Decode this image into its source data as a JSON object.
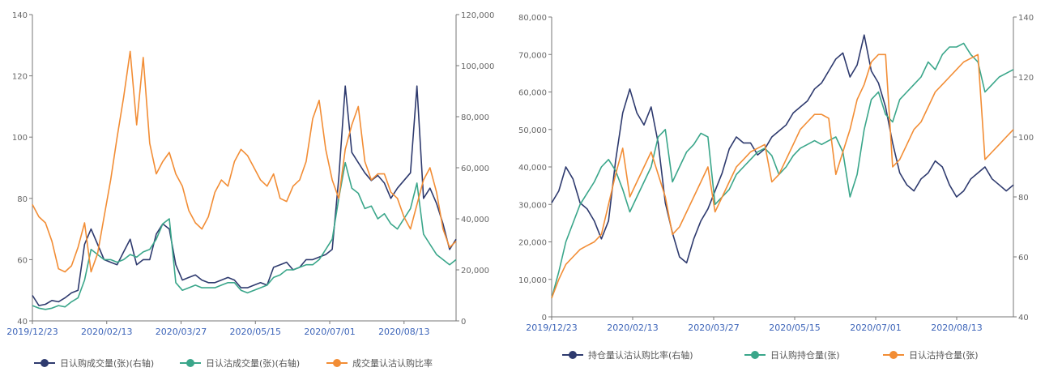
{
  "chart_data": [
    {
      "type": "line",
      "x_tick_labels": [
        "2019/12/23",
        "2020/02/13",
        "2020/03/27",
        "2020/05/15",
        "2020/07/01",
        "2020/08/13"
      ],
      "ylim_left": [
        40,
        140
      ],
      "yticks_left": [
        "40",
        "60",
        "80",
        "100",
        "120",
        "140"
      ],
      "ylim_right": [
        0,
        120000
      ],
      "yticks_right": [
        "0",
        "20,000",
        "40,000",
        "60,000",
        "80,000",
        "100,000",
        "120,000"
      ],
      "grid": false,
      "legend_position": "bottom",
      "series": [
        {
          "name": "日认购成交量(张)(右轴)",
          "axis": "right",
          "color": "#2e3a6e",
          "values": [
            10000,
            6000,
            6500,
            8000,
            7500,
            9000,
            11000,
            12000,
            30000,
            36000,
            30000,
            24000,
            23000,
            22000,
            27000,
            32000,
            22000,
            24000,
            24000,
            34000,
            38000,
            36000,
            22000,
            16000,
            17000,
            18000,
            16000,
            15000,
            15000,
            16000,
            17000,
            16000,
            13000,
            13000,
            14000,
            15000,
            14000,
            21000,
            22000,
            23000,
            20000,
            21000,
            24000,
            24000,
            25000,
            26000,
            28000,
            56000,
            92000,
            66000,
            62000,
            58000,
            55000,
            57000,
            54000,
            48000,
            52000,
            55000,
            58000,
            92000,
            48000,
            52000,
            46000,
            38000,
            28000,
            32000
          ]
        },
        {
          "name": "日认沽成交量(张)(右轴)",
          "axis": "right",
          "color": "#3aa68a",
          "values": [
            6000,
            5000,
            4500,
            5000,
            6000,
            5500,
            7500,
            9000,
            16000,
            28000,
            26000,
            24000,
            24000,
            23000,
            24000,
            26000,
            25000,
            27000,
            28000,
            32000,
            38000,
            40000,
            15000,
            12000,
            13000,
            14000,
            13000,
            13000,
            13000,
            14000,
            15000,
            15000,
            12000,
            11000,
            12000,
            13000,
            14000,
            17000,
            18000,
            20000,
            20000,
            21000,
            22000,
            22000,
            24000,
            28000,
            32000,
            48000,
            62000,
            52000,
            50000,
            44000,
            45000,
            40000,
            42000,
            38000,
            36000,
            40000,
            44000,
            54000,
            34000,
            30000,
            26000,
            24000,
            22000,
            24000
          ]
        },
        {
          "name": "成交量认沽认购比率",
          "axis": "left",
          "color": "#f28d35",
          "values": [
            78,
            74,
            72,
            66,
            57,
            56,
            58,
            64,
            72,
            56,
            62,
            74,
            86,
            100,
            113,
            128,
            104,
            126,
            98,
            88,
            92,
            95,
            88,
            84,
            76,
            72,
            70,
            74,
            82,
            86,
            84,
            92,
            96,
            94,
            90,
            86,
            84,
            88,
            80,
            79,
            84,
            86,
            92,
            106,
            112,
            96,
            86,
            80,
            96,
            104,
            110,
            92,
            86,
            88,
            88,
            82,
            80,
            74,
            70,
            78,
            86,
            90,
            82,
            70,
            64,
            66
          ]
        }
      ]
    },
    {
      "type": "line",
      "x_tick_labels": [
        "2019/12/23",
        "2020/02/13",
        "2020/03/27",
        "2020/05/15",
        "2020/07/01",
        "2020/08/13"
      ],
      "ylim_left": [
        0,
        80000
      ],
      "yticks_left": [
        "0",
        "10,000",
        "20,000",
        "30,000",
        "40,000",
        "50,000",
        "60,000",
        "70,000",
        "80,000"
      ],
      "ylim_right": [
        40,
        140
      ],
      "yticks_right": [
        "40",
        "60",
        "80",
        "100",
        "120",
        "140"
      ],
      "grid": false,
      "legend_position": "bottom",
      "series": [
        {
          "name": "持仓量认沽认购比率(右轴)",
          "axis": "right",
          "color": "#2e3a6e",
          "values": [
            78,
            82,
            90,
            86,
            78,
            76,
            72,
            66,
            72,
            92,
            108,
            116,
            108,
            104,
            110,
            98,
            78,
            68,
            60,
            58,
            66,
            72,
            76,
            82,
            88,
            96,
            100,
            98,
            98,
            94,
            96,
            100,
            102,
            104,
            108,
            110,
            112,
            116,
            118,
            122,
            126,
            128,
            120,
            124,
            134,
            122,
            118,
            110,
            98,
            88,
            84,
            82,
            86,
            88,
            92,
            90,
            84,
            80,
            82,
            86,
            88,
            90,
            86,
            84,
            82,
            84
          ]
        },
        {
          "name": "日认购持仓量(张)",
          "axis": "left",
          "color": "#3aa68a",
          "values": [
            5000,
            12000,
            20000,
            25000,
            30000,
            33000,
            36000,
            40000,
            42000,
            39000,
            34000,
            28000,
            32000,
            36000,
            40000,
            48000,
            50000,
            36000,
            40000,
            44000,
            46000,
            49000,
            48000,
            30000,
            32000,
            34000,
            38000,
            40000,
            42000,
            44000,
            45000,
            43000,
            38000,
            40000,
            43000,
            45000,
            46000,
            47000,
            46000,
            47000,
            48000,
            44000,
            32000,
            38000,
            50000,
            58000,
            60000,
            54000,
            52000,
            58000,
            60000,
            62000,
            64000,
            68000,
            66000,
            70000,
            72000,
            72000,
            73000,
            70000,
            68000,
            60000,
            62000,
            64000,
            65000,
            66000
          ]
        },
        {
          "name": "日认沽持仓量(张)",
          "axis": "left",
          "color": "#f28d35",
          "values": [
            5000,
            10000,
            14000,
            16000,
            18000,
            19000,
            20000,
            22000,
            30000,
            38000,
            45000,
            32000,
            36000,
            40000,
            44000,
            38000,
            32000,
            22000,
            24000,
            28000,
            32000,
            36000,
            40000,
            28000,
            32000,
            36000,
            40000,
            42000,
            44000,
            45000,
            46000,
            36000,
            38000,
            42000,
            46000,
            50000,
            52000,
            54000,
            54000,
            53000,
            38000,
            44000,
            50000,
            58000,
            62000,
            68000,
            70000,
            70000,
            40000,
            42000,
            46000,
            50000,
            52000,
            56000,
            60000,
            62000,
            64000,
            66000,
            68000,
            69000,
            70000,
            42000,
            44000,
            46000,
            48000,
            50000
          ]
        }
      ]
    }
  ]
}
